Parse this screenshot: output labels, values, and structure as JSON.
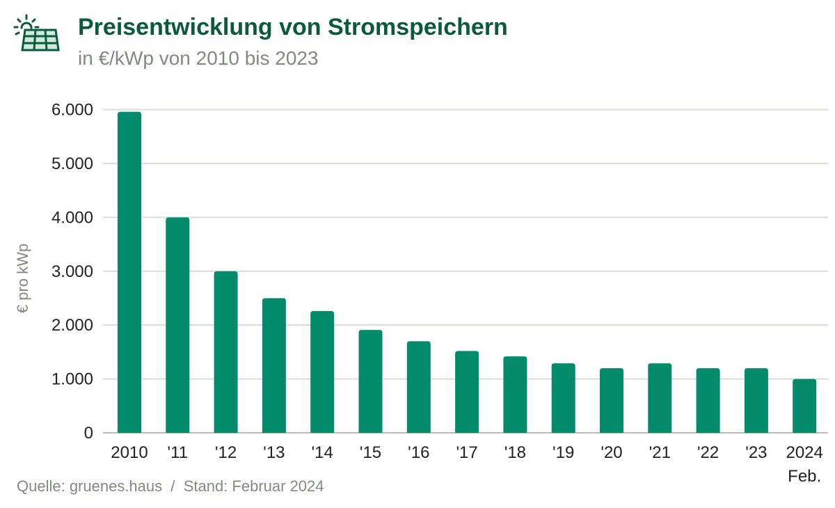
{
  "header": {
    "title": "Preisentwicklung von Stromspeichern",
    "subtitle": "in €/kWp von 2010 bis 2023",
    "icon": "solar-panel-icon"
  },
  "footer": {
    "source": "Quelle: gruenes.haus  /  Stand: Februar 2024"
  },
  "chart_data": {
    "type": "bar",
    "title": "Preisentwicklung von Stromspeichern",
    "subtitle": "in €/kWp von 2010 bis 2023",
    "xlabel": "",
    "ylabel": "€ pro kWp",
    "categories": [
      "2010",
      "'11",
      "'12",
      "'13",
      "'14",
      "'15",
      "'16",
      "'17",
      "'18",
      "'19",
      "'20",
      "'21",
      "'22",
      "'23",
      "2024"
    ],
    "category_sublabels": {
      "2024": "Feb."
    },
    "values": [
      5960,
      4000,
      3000,
      2500,
      2260,
      1910,
      1700,
      1520,
      1420,
      1290,
      1200,
      1290,
      1200,
      1200,
      1000
    ],
    "ylim": [
      0,
      6000
    ],
    "yticks": [
      "0",
      "1.000",
      "2.000",
      "3.000",
      "4.000",
      "5.000",
      "6.000"
    ],
    "grid": true,
    "bar_color": "#038b6c"
  }
}
